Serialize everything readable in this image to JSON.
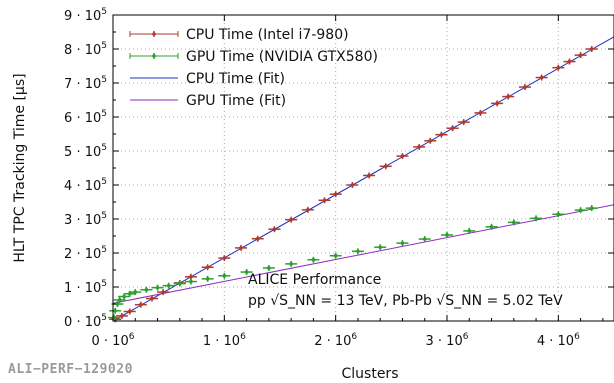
{
  "chart_data": {
    "type": "scatter",
    "title": "",
    "xlabel": "Clusters",
    "ylabel": "HLT TPC Tracking Time [µs]",
    "xlim": [
      0,
      4500000
    ],
    "ylim": [
      0,
      900000
    ],
    "x_ticks": [
      0,
      1000000,
      2000000,
      3000000,
      4000000
    ],
    "y_ticks": [
      0,
      100000,
      200000,
      300000,
      400000,
      500000,
      600000,
      700000,
      800000,
      900000
    ],
    "x_tick_labels": [
      "0 · 10^6",
      "1 · 10^6",
      "2 · 10^6",
      "3 · 10^6",
      "4 · 10^6"
    ],
    "y_tick_labels": [
      "0 · 10^5",
      "1 · 10^5",
      "2 · 10^5",
      "3 · 10^5",
      "4 · 10^5",
      "5 · 10^5",
      "6 · 10^5",
      "7 · 10^5",
      "8 · 10^5",
      "9 · 10^5"
    ],
    "grid": true,
    "legend_position": "top-left",
    "series": [
      {
        "name": "CPU Time (Intel i7-980)",
        "style": "points",
        "color": "#b03a2e",
        "x": [
          20000,
          80000,
          150000,
          250000,
          350000,
          450000,
          600000,
          700000,
          850000,
          1000000,
          1150000,
          1300000,
          1450000,
          1600000,
          1750000,
          1900000,
          2000000,
          2150000,
          2300000,
          2450000,
          2600000,
          2750000,
          2850000,
          2950000,
          3050000,
          3150000,
          3300000,
          3450000,
          3550000,
          3700000,
          3850000,
          4000000,
          4100000,
          4200000,
          4300000
        ],
        "y": [
          5000,
          15000,
          28000,
          48000,
          66000,
          85000,
          112000,
          130000,
          158000,
          185000,
          215000,
          242000,
          270000,
          298000,
          327000,
          355000,
          373000,
          400000,
          428000,
          455000,
          485000,
          512000,
          530000,
          548000,
          567000,
          585000,
          612000,
          640000,
          660000,
          688000,
          716000,
          745000,
          763000,
          782000,
          800000
        ]
      },
      {
        "name": "GPU Time (NVIDIA GTX580)",
        "style": "points",
        "color": "#2ca02c",
        "x": [
          10000,
          20000,
          40000,
          60000,
          100000,
          150000,
          200000,
          300000,
          400000,
          500000,
          600000,
          700000,
          850000,
          1000000,
          1200000,
          1400000,
          1600000,
          1800000,
          2000000,
          2200000,
          2400000,
          2600000,
          2800000,
          3000000,
          3200000,
          3400000,
          3600000,
          3800000,
          4000000,
          4200000,
          4300000
        ],
        "y": [
          10000,
          30000,
          50000,
          62000,
          72000,
          80000,
          85000,
          92000,
          98000,
          104000,
          110000,
          116000,
          124000,
          133000,
          144000,
          156000,
          168000,
          180000,
          192000,
          205000,
          217000,
          229000,
          241000,
          253000,
          265000,
          277000,
          290000,
          302000,
          314000,
          326000,
          332000
        ]
      },
      {
        "name": "CPU Time (Fit)",
        "style": "line",
        "color": "#1f2fbf",
        "x": [
          0,
          4500000
        ],
        "y": [
          0,
          836000
        ]
      },
      {
        "name": "GPU Time (Fit)",
        "style": "line",
        "color": "#8e2bbf",
        "x": [
          0,
          4500000
        ],
        "y": [
          52000,
          342000
        ]
      }
    ],
    "annotation_line1": "ALICE Performance",
    "annotation_line2": "pp √S_NN = 13 TeV, Pb-Pb √S_NN = 5.02 TeV"
  },
  "watermark": "ALI−PERF−129020"
}
